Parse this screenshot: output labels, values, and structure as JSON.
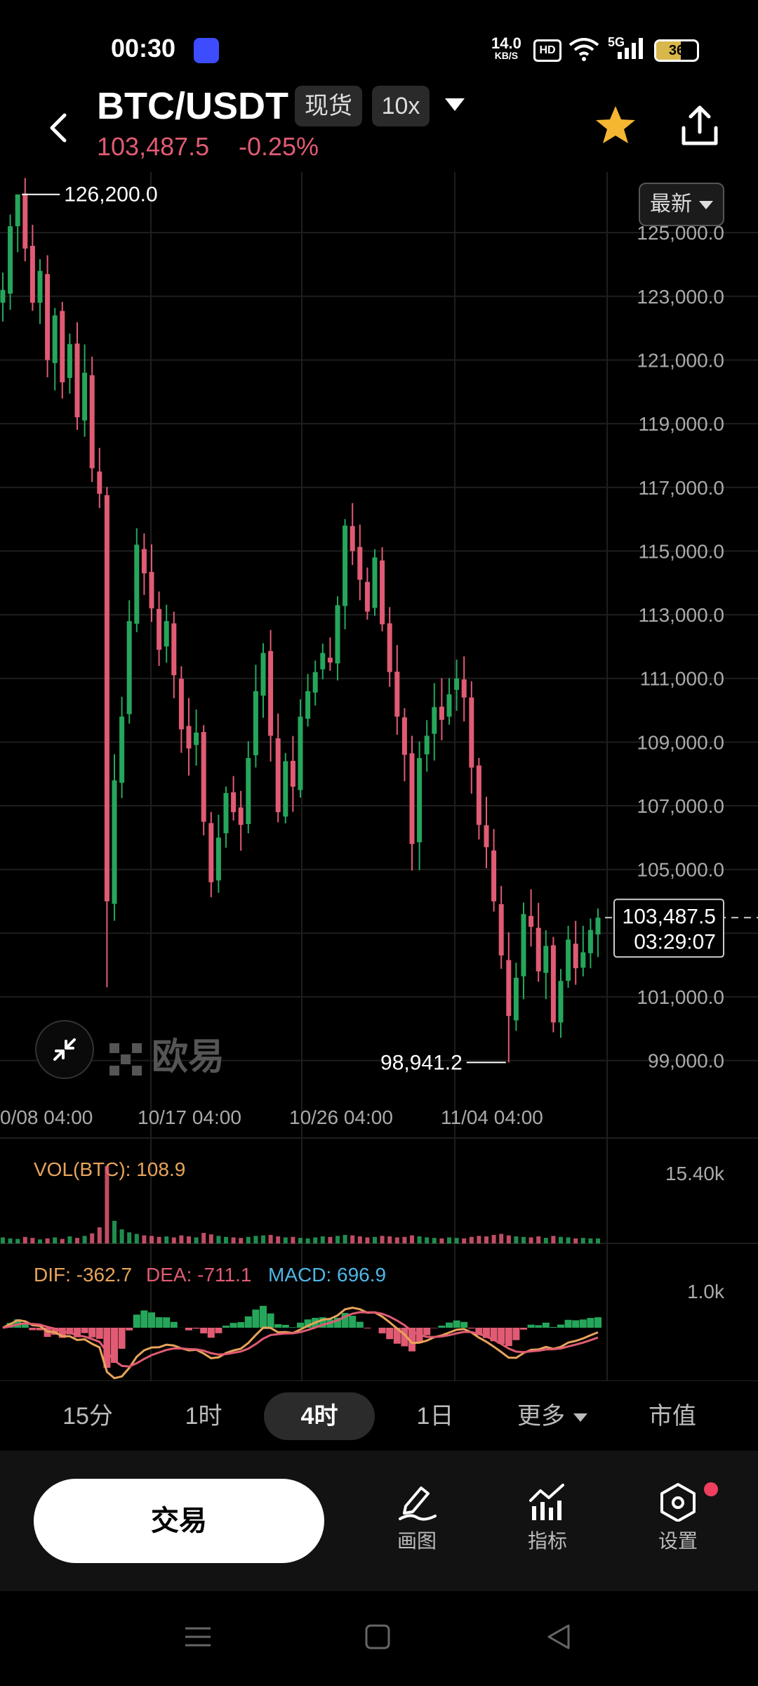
{
  "status_bar": {
    "time": "00:30",
    "net_speed_value": "14.0",
    "net_speed_unit": "KB/S",
    "hd": "HD",
    "signal": "5G",
    "battery": "36"
  },
  "header": {
    "pair": "BTC/USDT",
    "spot_chip": "现货",
    "leverage_chip": "10x",
    "price": "103,487.5",
    "change": "-0.25%"
  },
  "chart_data": {
    "type": "candlestick",
    "latest_button": "最新",
    "y_ticks": [
      "125,000.0",
      "123,000.0",
      "121,000.0",
      "119,000.0",
      "117,000.0",
      "115,000.0",
      "113,000.0",
      "111,000.0",
      "109,000.0",
      "107,000.0",
      "105,000.0",
      "101,000.0",
      "99,000.0"
    ],
    "ylim": [
      98000,
      126900
    ],
    "x_ticks": [
      "0/08 04:00",
      "10/17 04:00",
      "10/26 04:00",
      "11/04 04:00"
    ],
    "high_label": "126,200.0",
    "low_label": "98,941.2",
    "current_price": "103,487.5",
    "countdown": "03:29:07",
    "close_path": [
      123200,
      125200,
      126200,
      124500,
      122800,
      123800,
      121000,
      122400,
      120300,
      121500,
      119200,
      120600,
      117600,
      116800,
      104000,
      107800,
      109800,
      112800,
      115200,
      114300,
      113200,
      111900,
      112800,
      111100,
      109400,
      108800,
      109300,
      106500,
      104600,
      106000,
      107400,
      106800,
      106400,
      108500,
      110600,
      111800,
      109200,
      106800,
      108400,
      107600,
      109800,
      110600,
      111200,
      111800,
      111500,
      113300,
      115800,
      115000,
      114100,
      113100,
      114800,
      112700,
      111200,
      109800,
      108600,
      105800,
      108500,
      109200,
      110100,
      109700,
      110500,
      111000,
      110400,
      108200,
      106400,
      105700,
      104000,
      102300,
      100400,
      101600,
      103600,
      103200,
      101800,
      102600,
      100200,
      101500,
      102800,
      101900,
      102400,
      103100,
      103487.5
    ],
    "watermark": "欧易",
    "volume": {
      "label": "VOL(BTC): 108.9",
      "axis_max": "15.40k",
      "values": [
        1.2,
        1.0,
        0.9,
        1.3,
        1.1,
        0.8,
        1.0,
        1.2,
        0.9,
        1.4,
        1.1,
        1.5,
        2.0,
        3.2,
        15.4,
        4.5,
        2.8,
        2.2,
        1.9,
        1.6,
        1.5,
        1.3,
        1.4,
        1.2,
        1.6,
        1.4,
        1.2,
        2.1,
        1.8,
        1.5,
        1.3,
        1.2,
        1.1,
        1.3,
        1.5,
        1.6,
        1.7,
        1.4,
        1.2,
        1.3,
        1.1,
        1.0,
        1.2,
        1.4,
        1.3,
        1.5,
        1.7,
        1.6,
        1.4,
        1.2,
        1.3,
        1.5,
        1.4,
        1.2,
        1.3,
        1.6,
        1.4,
        1.2,
        1.1,
        1.0,
        1.2,
        1.1,
        1.0,
        1.3,
        1.5,
        1.4,
        1.7,
        1.9,
        1.6,
        1.4,
        1.3,
        1.2,
        1.4,
        1.1,
        1.5,
        1.3,
        1.2,
        1.0,
        1.1,
        1.0,
        1.0
      ]
    },
    "macd": {
      "dif_label": "DIF: -362.7",
      "dea_label": "DEA: -711.1",
      "macd_label": "MACD: 696.9",
      "axis_label": "1.0k"
    }
  },
  "timeframes": [
    {
      "label": "15分",
      "active": false
    },
    {
      "label": "1时",
      "active": false
    },
    {
      "label": "4时",
      "active": true
    },
    {
      "label": "1日",
      "active": false
    },
    {
      "label": "更多",
      "active": false,
      "dropdown": true
    },
    {
      "label": "市值",
      "active": false
    }
  ],
  "bottom_bar": {
    "trade_button": "交易",
    "draw": "画图",
    "indicators": "指标",
    "settings": "设置"
  },
  "colors": {
    "up": "#26a65b",
    "down": "#e05b73",
    "star": "#f5b731"
  }
}
